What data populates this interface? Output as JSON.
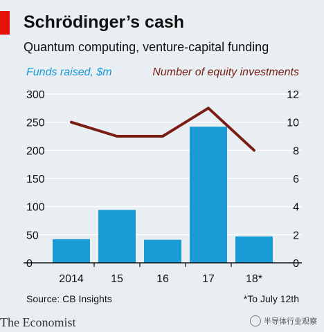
{
  "header": {
    "title": "Schrödinger’s cash",
    "subtitle": "Quantum computing, venture-capital funding"
  },
  "footer": {
    "source": "Source: CB Insights",
    "footnote": "*To July 12th",
    "brand": "The Economist",
    "watermark": "半导体行业观察"
  },
  "colors": {
    "bars": "#1b9bd6",
    "line": "#7a1e14",
    "grid": "#ffffff",
    "accent_red": "#e3120b",
    "background": "#e8eef2"
  },
  "chart_data": {
    "type": "bar",
    "title": "Schrödinger’s cash",
    "subtitle": "Quantum computing, venture-capital funding",
    "categories": [
      "2014",
      "15",
      "16",
      "17",
      "18*"
    ],
    "series": [
      {
        "name": "Funds raised, $m",
        "type": "bar",
        "axis": "left",
        "values": [
          42,
          94,
          41,
          242,
          47
        ]
      },
      {
        "name": "Number of equity investments",
        "type": "line",
        "axis": "right",
        "values": [
          10,
          9,
          9,
          11,
          8
        ]
      }
    ],
    "ylim_left": [
      0,
      300
    ],
    "yticks_left": [
      0,
      50,
      100,
      150,
      200,
      250,
      300
    ],
    "ylim_right": [
      0,
      12
    ],
    "yticks_right": [
      0,
      2,
      4,
      6,
      8,
      10,
      12
    ],
    "grid": true,
    "legend": "top"
  }
}
